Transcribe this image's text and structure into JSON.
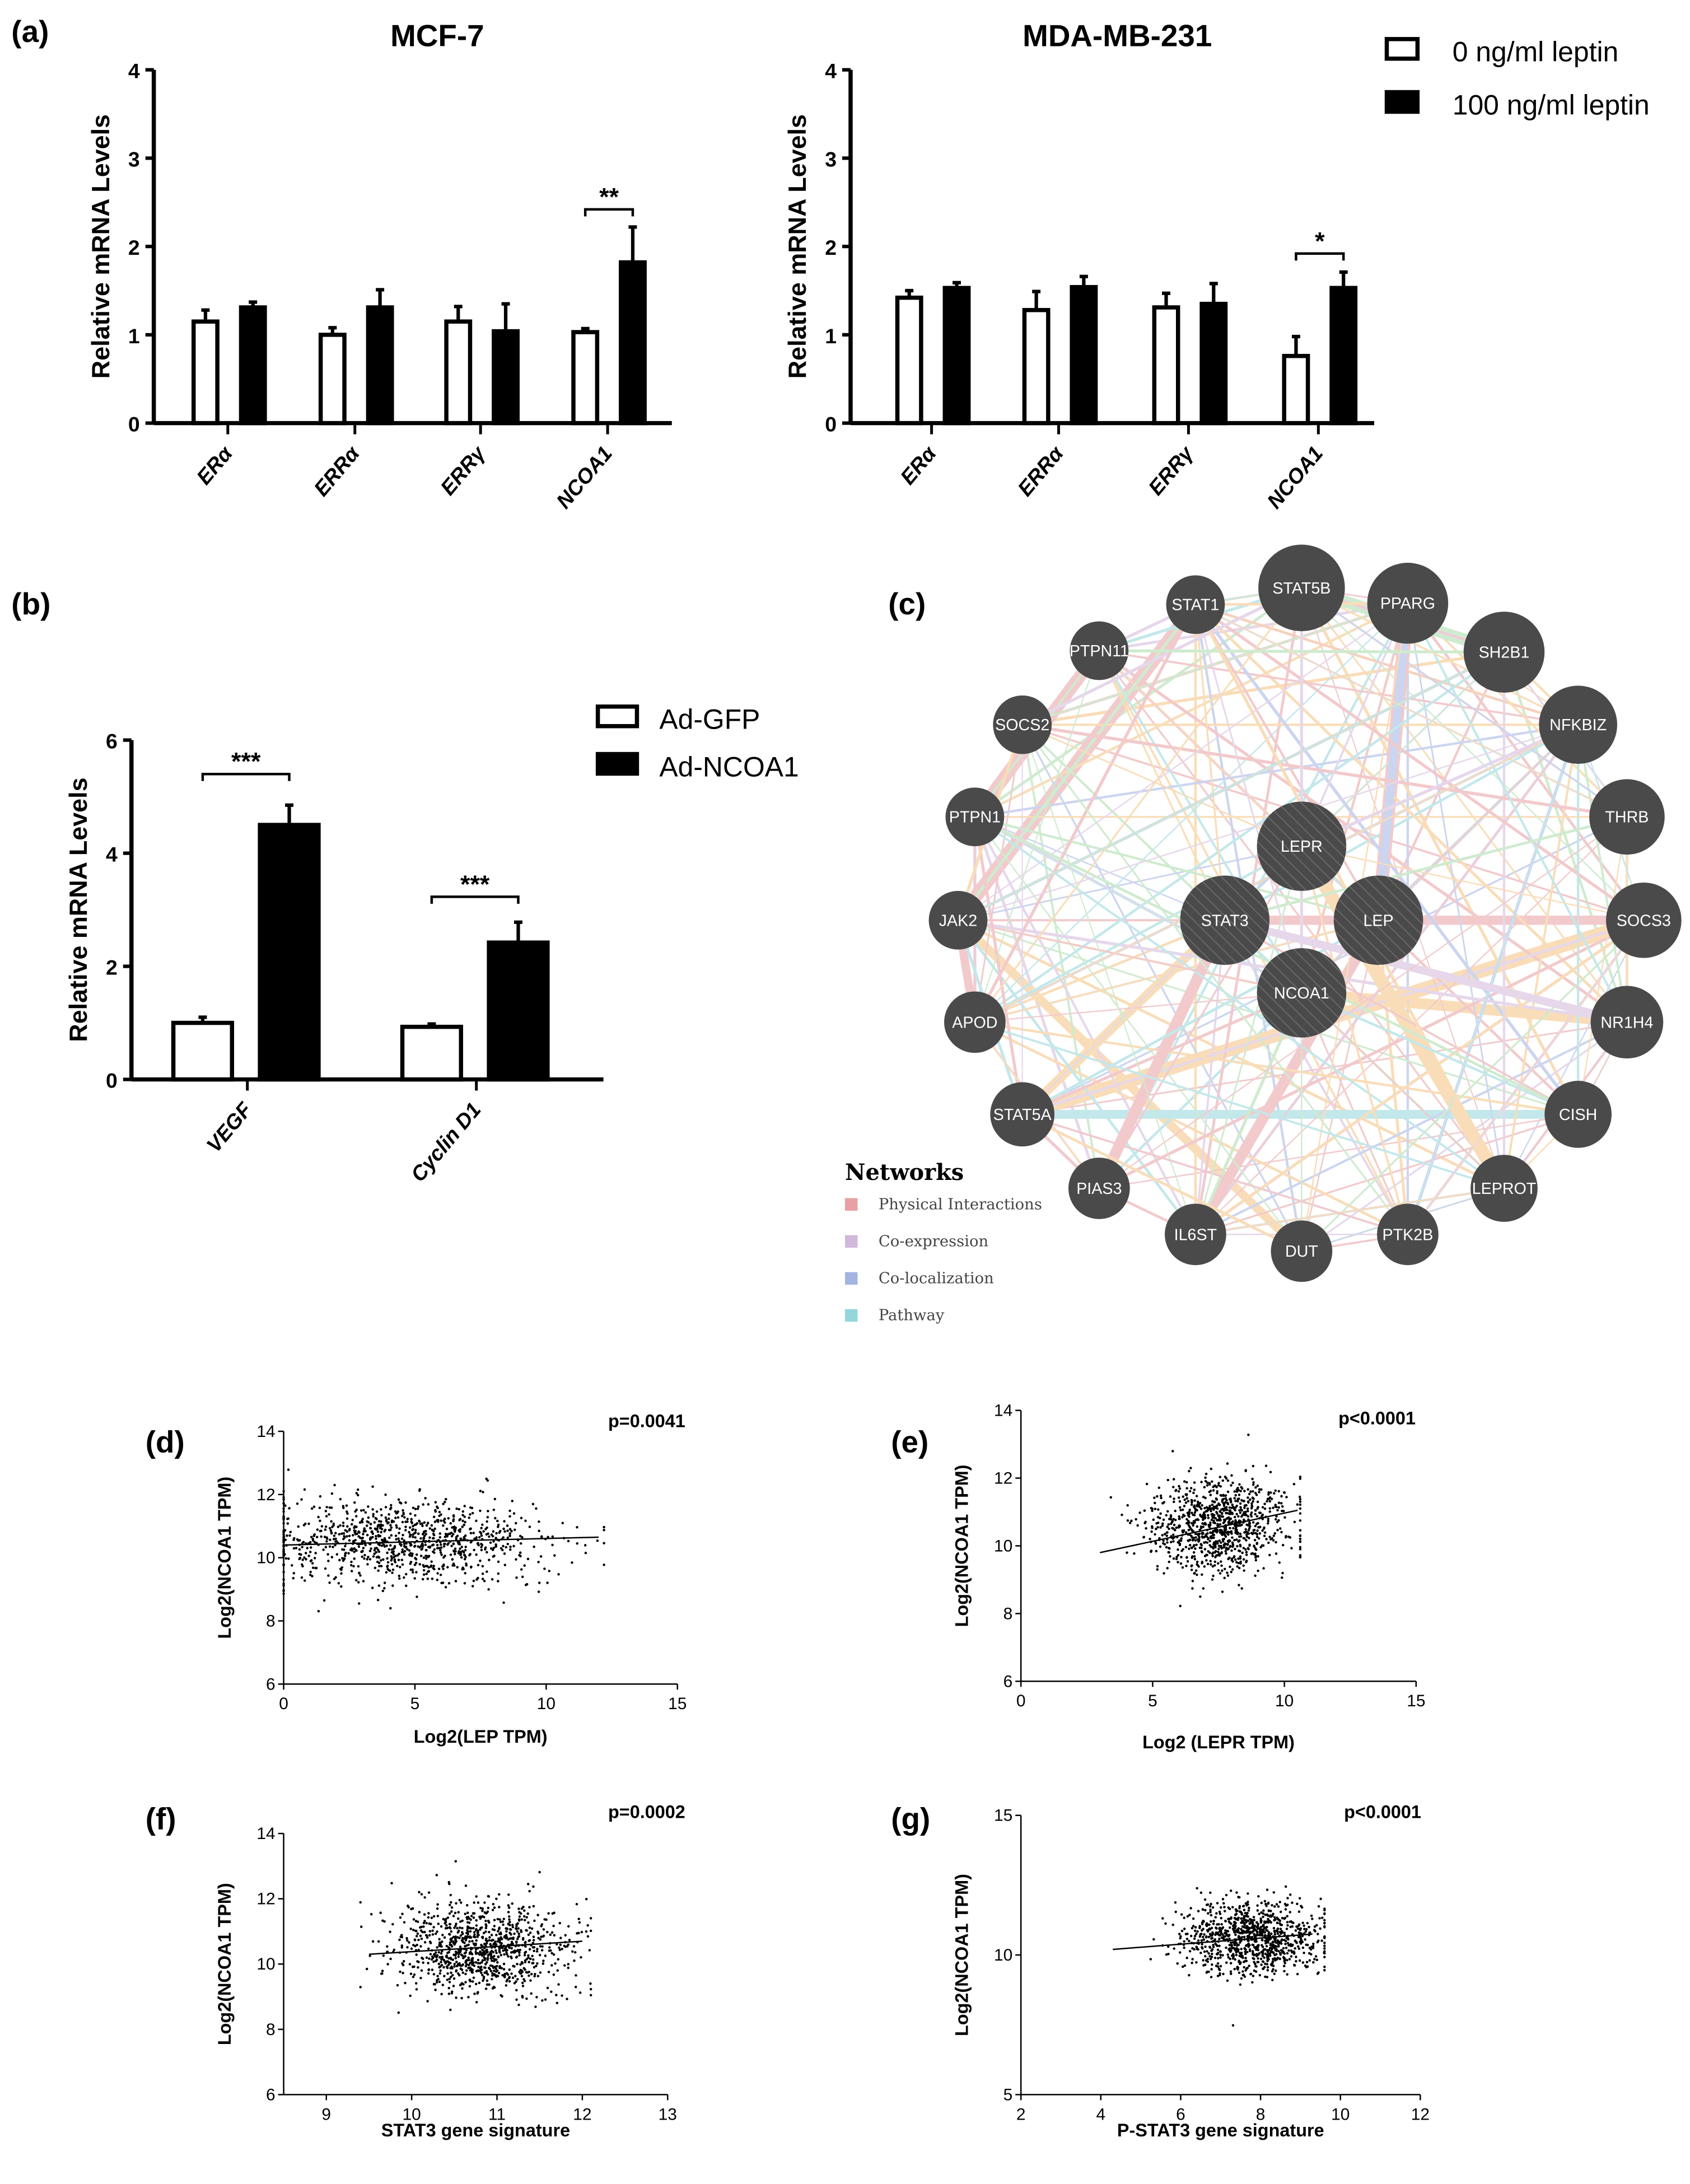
{
  "panel_labels": {
    "a": "(a)",
    "b": "(b)",
    "c": "(c)",
    "d": "(d)",
    "e": "(e)",
    "f": "(f)",
    "g": "(g)"
  },
  "chart_data": [
    {
      "type": "bar",
      "title": "MCF-7",
      "ylabel": "Relative mRNA Levels",
      "ylim": [
        0,
        4
      ],
      "yticks": [
        "0",
        "1",
        "2",
        "3",
        "4"
      ],
      "categories": [
        "ERα",
        "ERRα",
        "ERRγ",
        "NCOA1"
      ],
      "series": [
        {
          "name": "0 ng/ml leptin",
          "fill": "open",
          "values": [
            1.15,
            1.0,
            1.15,
            1.03
          ],
          "error_top": [
            1.28,
            1.08,
            1.32,
            1.07
          ]
        },
        {
          "name": "100 ng/ml leptin",
          "fill": "filled",
          "values": [
            1.31,
            1.31,
            1.04,
            1.82
          ],
          "error_top": [
            1.37,
            1.51,
            1.35,
            2.22
          ]
        }
      ],
      "significance": [
        {
          "category_index": 3,
          "label": "**",
          "level": 2.42
        }
      ]
    },
    {
      "type": "bar",
      "title": "MDA-MB-231",
      "ylabel": "Relative mRNA Levels",
      "ylim": [
        0,
        4
      ],
      "yticks": [
        "0",
        "1",
        "2",
        "3",
        "4"
      ],
      "categories": [
        "ERα",
        "ERRα",
        "ERRγ",
        "NCOA1"
      ],
      "series": [
        {
          "name": "0 ng/ml leptin",
          "fill": "open",
          "values": [
            1.42,
            1.28,
            1.31,
            0.76
          ],
          "error_top": [
            1.5,
            1.49,
            1.47,
            0.98
          ]
        },
        {
          "name": "100 ng/ml leptin",
          "fill": "filled",
          "values": [
            1.53,
            1.54,
            1.35,
            1.53
          ],
          "error_top": [
            1.59,
            1.66,
            1.58,
            1.71
          ]
        }
      ],
      "significance": [
        {
          "category_index": 3,
          "label": "*",
          "level": 1.92
        }
      ],
      "legend": [
        "0 ng/ml leptin",
        "100 ng/ml leptin"
      ]
    },
    {
      "type": "bar",
      "title": "",
      "ylabel": "Relative mRNA Levels",
      "ylim": [
        0,
        6
      ],
      "yticks": [
        "0",
        "2",
        "4",
        "6"
      ],
      "categories": [
        "VEGF",
        "Cyclin  D1"
      ],
      "series": [
        {
          "name": "Ad-GFP",
          "fill": "open",
          "values": [
            1.0,
            0.93
          ],
          "error_top": [
            1.1,
            0.98
          ]
        },
        {
          "name": "Ad-NCOA1",
          "fill": "filled",
          "values": [
            4.5,
            2.42
          ],
          "error_top": [
            4.85,
            2.78
          ]
        }
      ],
      "significance": [
        {
          "category_index": 0,
          "label": "***",
          "level": 5.4
        },
        {
          "category_index": 1,
          "label": "***",
          "level": 3.23
        }
      ],
      "legend": [
        "Ad-GFP",
        "Ad-NCOA1"
      ]
    },
    {
      "type": "network",
      "nodes": [
        "STAT5B",
        "STAT1",
        "PPARG",
        "PTPN11",
        "SH2B1",
        "SOCS2",
        "NFKBIZ",
        "PTPN1",
        "THRB",
        "LEPR",
        "JAK2",
        "STAT3",
        "LEP",
        "SOCS3",
        "NCOA1",
        "APOD",
        "NR1H4",
        "STAT5A",
        "CISH",
        "PIAS3",
        "LEPROT",
        "IL6ST",
        "DUT",
        "PTK2B"
      ],
      "query_nodes": [
        "LEPR",
        "STAT3",
        "LEP",
        "NCOA1"
      ],
      "legend_title": "Networks",
      "legend": [
        {
          "label": "Physical Interactions",
          "color": "#e8a0a4"
        },
        {
          "label": "Co-expression",
          "color": "#d2b8dc"
        },
        {
          "label": "Co-localization",
          "color": "#a3b4e2"
        },
        {
          "label": "Pathway",
          "color": "#93d6dc"
        }
      ]
    },
    {
      "type": "scatter",
      "pvalue": "p=0.0041",
      "xlabel": "Log2(LEP TPM)",
      "ylabel": "Log2(NCOA1 TPM)",
      "xlim": [
        0,
        15
      ],
      "ylim": [
        6,
        14
      ],
      "xticks": [
        "0",
        "5",
        "10",
        "15"
      ],
      "yticks": [
        "6",
        "8",
        "10",
        "12",
        "14"
      ],
      "fit": [
        [
          0,
          10.4
        ],
        [
          12,
          10.65
        ]
      ],
      "x_mean": 4.5,
      "x_sd": 2.8,
      "x_range": [
        0,
        12.2
      ],
      "y_mean": 10.5,
      "y_sd": 0.65,
      "n_points": 1000
    },
    {
      "type": "scatter",
      "pvalue": "p<0.0001",
      "xlabel": "Log2 (LEPR TPM)",
      "ylabel": "Log2(NCOA1 TPM)",
      "xlim": [
        0,
        15
      ],
      "ylim": [
        6,
        14
      ],
      "xticks": [
        "0",
        "5",
        "10",
        "15"
      ],
      "yticks": [
        "6",
        "8",
        "10",
        "12",
        "14"
      ],
      "fit": [
        [
          3,
          9.8
        ],
        [
          10.5,
          11.05
        ]
      ],
      "x_mean": 7.5,
      "x_sd": 1.3,
      "x_range": [
        3,
        10.6
      ],
      "y_mean": 10.6,
      "y_sd": 0.7,
      "n_points": 1000
    },
    {
      "type": "scatter",
      "pvalue": "p=0.0002",
      "xlabel": "STAT3 gene signature",
      "ylabel": "Log2(NCOA1 TPM)",
      "xlim": [
        8.5,
        13
      ],
      "ylim": [
        6,
        14
      ],
      "xticks": [
        "9",
        "10",
        "11",
        "12",
        "13"
      ],
      "yticks": [
        "6",
        "8",
        "10",
        "12",
        "14"
      ],
      "fit": [
        [
          9.5,
          10.3
        ],
        [
          12,
          10.7
        ]
      ],
      "x_mean": 10.8,
      "x_sd": 0.5,
      "x_range": [
        9.4,
        12.1
      ],
      "y_mean": 10.5,
      "y_sd": 0.7,
      "n_points": 1000
    },
    {
      "type": "scatter",
      "pvalue": "p<0.0001",
      "xlabel": "P-STAT3 gene signature",
      "ylabel": "Log2(NCOA1 TPM)",
      "xlim": [
        2,
        12
      ],
      "ylim": [
        5,
        15
      ],
      "xticks": [
        "2",
        "4",
        "6",
        "8",
        "10",
        "12"
      ],
      "yticks": [
        "5",
        "10",
        "15"
      ],
      "fit": [
        [
          4.3,
          10.2
        ],
        [
          9.3,
          10.75
        ]
      ],
      "x_mean": 7.8,
      "x_sd": 0.85,
      "x_range": [
        4.3,
        9.6
      ],
      "y_mean": 10.6,
      "y_sd": 0.65,
      "n_points": 1000
    }
  ]
}
